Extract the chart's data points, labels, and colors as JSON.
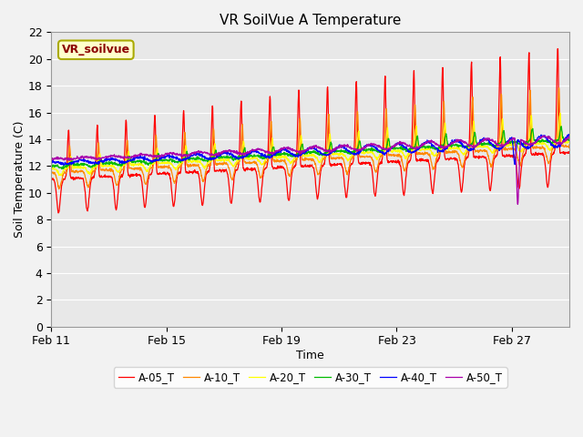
{
  "title": "VR SoilVue A Temperature",
  "xlabel": "Time",
  "ylabel": "Soil Temperature (C)",
  "ylim": [
    0,
    22
  ],
  "yticks": [
    0,
    2,
    4,
    6,
    8,
    10,
    12,
    14,
    16,
    18,
    20,
    22
  ],
  "start_day": 11,
  "end_day": 29,
  "xtick_days": [
    11,
    15,
    19,
    23,
    27
  ],
  "xtick_labels": [
    "Feb 11",
    "Feb 15",
    "Feb 19",
    "Feb 23",
    "Feb 27"
  ],
  "series_names": [
    "A-05_T",
    "A-10_T",
    "A-20_T",
    "A-30_T",
    "A-40_T",
    "A-50_T"
  ],
  "series_colors": [
    "#FF0000",
    "#FF8800",
    "#FFFF00",
    "#00BB00",
    "#0000FF",
    "#AA00AA"
  ],
  "annotation_text": "VR_soilvue",
  "annotation_color": "#8B0000",
  "annotation_bg": "#FFFFCC",
  "annotation_border": "#AAAA00",
  "bg_color": "#E8E8E8",
  "grid_color": "#FFFFFF",
  "figsize": [
    6.4,
    4.8
  ],
  "dpi": 100
}
